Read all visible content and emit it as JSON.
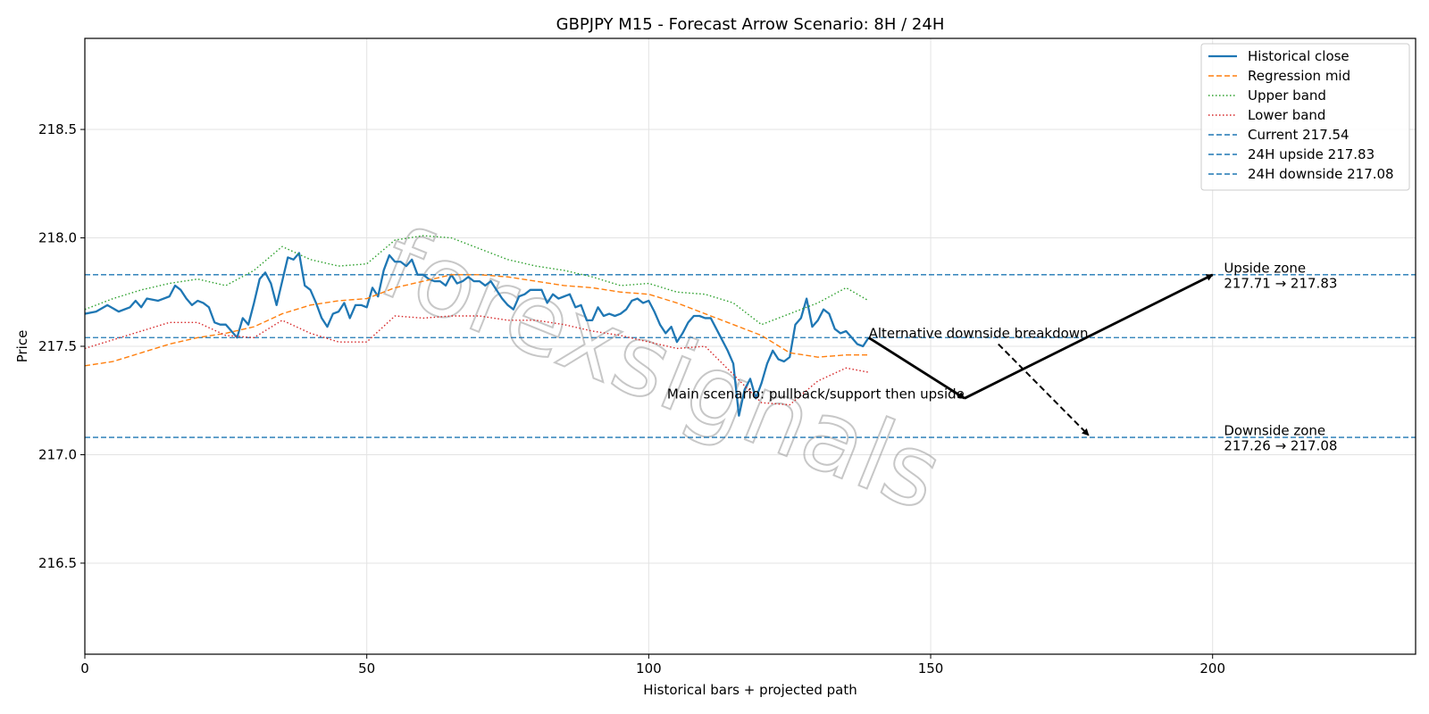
{
  "chart_data": {
    "type": "line",
    "title": "GBPJPY M15 - Forecast Arrow Scenario: 8H / 24H",
    "xlabel": "Historical bars + projected path",
    "ylabel": "Price",
    "xlim": [
      0,
      236
    ],
    "ylim": [
      216.08,
      218.92
    ],
    "xticks": [
      0,
      50,
      100,
      150,
      200
    ],
    "yticks": [
      216.5,
      217.0,
      217.5,
      218.0,
      218.5
    ],
    "grid": true,
    "legend_position": "top-right",
    "series": [
      {
        "name": "Historical close",
        "color": "#1f77b4",
        "style": "solid",
        "points": [
          [
            0,
            217.65
          ],
          [
            2,
            217.66
          ],
          [
            4,
            217.69
          ],
          [
            6,
            217.66
          ],
          [
            8,
            217.68
          ],
          [
            9,
            217.71
          ],
          [
            10,
            217.68
          ],
          [
            11,
            217.72
          ],
          [
            13,
            217.71
          ],
          [
            15,
            217.73
          ],
          [
            16,
            217.78
          ],
          [
            17,
            217.76
          ],
          [
            18,
            217.72
          ],
          [
            19,
            217.69
          ],
          [
            20,
            217.71
          ],
          [
            21,
            217.7
          ],
          [
            22,
            217.68
          ],
          [
            23,
            217.61
          ],
          [
            24,
            217.6
          ],
          [
            25,
            217.6
          ],
          [
            26,
            217.57
          ],
          [
            27,
            217.54
          ],
          [
            28,
            217.63
          ],
          [
            29,
            217.6
          ],
          [
            30,
            217.7
          ],
          [
            31,
            217.81
          ],
          [
            32,
            217.84
          ],
          [
            33,
            217.79
          ],
          [
            34,
            217.69
          ],
          [
            35,
            217.8
          ],
          [
            36,
            217.91
          ],
          [
            37,
            217.9
          ],
          [
            38,
            217.93
          ],
          [
            39,
            217.78
          ],
          [
            40,
            217.76
          ],
          [
            41,
            217.7
          ],
          [
            42,
            217.63
          ],
          [
            43,
            217.59
          ],
          [
            44,
            217.65
          ],
          [
            45,
            217.66
          ],
          [
            46,
            217.7
          ],
          [
            47,
            217.63
          ],
          [
            48,
            217.69
          ],
          [
            49,
            217.69
          ],
          [
            50,
            217.68
          ],
          [
            51,
            217.77
          ],
          [
            52,
            217.73
          ],
          [
            53,
            217.85
          ],
          [
            54,
            217.92
          ],
          [
            55,
            217.89
          ],
          [
            56,
            217.89
          ],
          [
            57,
            217.87
          ],
          [
            58,
            217.9
          ],
          [
            59,
            217.83
          ],
          [
            60,
            217.83
          ],
          [
            61,
            217.81
          ],
          [
            62,
            217.8
          ],
          [
            63,
            217.8
          ],
          [
            64,
            217.78
          ],
          [
            65,
            217.83
          ],
          [
            66,
            217.79
          ],
          [
            67,
            217.8
          ],
          [
            68,
            217.82
          ],
          [
            69,
            217.8
          ],
          [
            70,
            217.8
          ],
          [
            71,
            217.78
          ],
          [
            72,
            217.8
          ],
          [
            73,
            217.76
          ],
          [
            74,
            217.72
          ],
          [
            75,
            217.69
          ],
          [
            76,
            217.67
          ],
          [
            77,
            217.73
          ],
          [
            78,
            217.74
          ],
          [
            79,
            217.76
          ],
          [
            80,
            217.76
          ],
          [
            81,
            217.76
          ],
          [
            82,
            217.7
          ],
          [
            83,
            217.74
          ],
          [
            84,
            217.72
          ],
          [
            85,
            217.73
          ],
          [
            86,
            217.74
          ],
          [
            87,
            217.68
          ],
          [
            88,
            217.69
          ],
          [
            89,
            217.62
          ],
          [
            90,
            217.62
          ],
          [
            91,
            217.68
          ],
          [
            92,
            217.64
          ],
          [
            93,
            217.65
          ],
          [
            94,
            217.64
          ],
          [
            95,
            217.65
          ],
          [
            96,
            217.67
          ],
          [
            97,
            217.71
          ],
          [
            98,
            217.72
          ],
          [
            99,
            217.7
          ],
          [
            100,
            217.71
          ],
          [
            101,
            217.66
          ],
          [
            102,
            217.6
          ],
          [
            103,
            217.56
          ],
          [
            104,
            217.59
          ],
          [
            105,
            217.52
          ],
          [
            106,
            217.56
          ],
          [
            107,
            217.61
          ],
          [
            108,
            217.64
          ],
          [
            109,
            217.64
          ],
          [
            110,
            217.63
          ],
          [
            111,
            217.63
          ],
          [
            112,
            217.58
          ],
          [
            113,
            217.53
          ],
          [
            114,
            217.48
          ],
          [
            115,
            217.42
          ],
          [
            116,
            217.18
          ],
          [
            117,
            217.3
          ],
          [
            118,
            217.35
          ],
          [
            119,
            217.26
          ],
          [
            120,
            217.33
          ],
          [
            121,
            217.42
          ],
          [
            122,
            217.48
          ],
          [
            123,
            217.44
          ],
          [
            124,
            217.43
          ],
          [
            125,
            217.45
          ],
          [
            126,
            217.6
          ],
          [
            127,
            217.63
          ],
          [
            128,
            217.72
          ],
          [
            129,
            217.59
          ],
          [
            130,
            217.62
          ],
          [
            131,
            217.67
          ],
          [
            132,
            217.65
          ],
          [
            133,
            217.58
          ],
          [
            134,
            217.56
          ],
          [
            135,
            217.57
          ],
          [
            136,
            217.54
          ],
          [
            137,
            217.51
          ],
          [
            138,
            217.5
          ],
          [
            139,
            217.54
          ]
        ]
      },
      {
        "name": "Regression mid",
        "color": "#ff7f0e",
        "style": "dashed",
        "points": [
          [
            0,
            217.41
          ],
          [
            5,
            217.43
          ],
          [
            10,
            217.47
          ],
          [
            15,
            217.51
          ],
          [
            20,
            217.54
          ],
          [
            25,
            217.56
          ],
          [
            30,
            217.59
          ],
          [
            35,
            217.65
          ],
          [
            40,
            217.69
          ],
          [
            45,
            217.71
          ],
          [
            50,
            217.72
          ],
          [
            55,
            217.77
          ],
          [
            60,
            217.8
          ],
          [
            65,
            217.83
          ],
          [
            70,
            217.83
          ],
          [
            75,
            217.82
          ],
          [
            80,
            217.8
          ],
          [
            85,
            217.78
          ],
          [
            90,
            217.77
          ],
          [
            95,
            217.75
          ],
          [
            100,
            217.74
          ],
          [
            105,
            217.7
          ],
          [
            110,
            217.65
          ],
          [
            115,
            217.6
          ],
          [
            120,
            217.55
          ],
          [
            125,
            217.47
          ],
          [
            130,
            217.45
          ],
          [
            135,
            217.46
          ],
          [
            139,
            217.46
          ]
        ]
      },
      {
        "name": "Upper band",
        "color": "#2ca02c",
        "style": "dotted",
        "points": [
          [
            0,
            217.67
          ],
          [
            5,
            217.72
          ],
          [
            10,
            217.76
          ],
          [
            15,
            217.79
          ],
          [
            20,
            217.81
          ],
          [
            25,
            217.78
          ],
          [
            30,
            217.85
          ],
          [
            35,
            217.96
          ],
          [
            40,
            217.9
          ],
          [
            45,
            217.87
          ],
          [
            50,
            217.88
          ],
          [
            55,
            217.99
          ],
          [
            60,
            218.01
          ],
          [
            65,
            218.0
          ],
          [
            70,
            217.95
          ],
          [
            75,
            217.9
          ],
          [
            80,
            217.87
          ],
          [
            85,
            217.85
          ],
          [
            90,
            217.82
          ],
          [
            95,
            217.78
          ],
          [
            100,
            217.79
          ],
          [
            105,
            217.75
          ],
          [
            110,
            217.74
          ],
          [
            115,
            217.7
          ],
          [
            120,
            217.6
          ],
          [
            125,
            217.65
          ],
          [
            130,
            217.7
          ],
          [
            135,
            217.77
          ],
          [
            139,
            217.71
          ]
        ]
      },
      {
        "name": "Lower band",
        "color": "#d62728",
        "style": "dotted",
        "points": [
          [
            0,
            217.49
          ],
          [
            5,
            217.53
          ],
          [
            10,
            217.57
          ],
          [
            15,
            217.61
          ],
          [
            20,
            217.61
          ],
          [
            25,
            217.55
          ],
          [
            30,
            217.54
          ],
          [
            35,
            217.62
          ],
          [
            40,
            217.56
          ],
          [
            45,
            217.52
          ],
          [
            50,
            217.52
          ],
          [
            55,
            217.64
          ],
          [
            60,
            217.63
          ],
          [
            65,
            217.64
          ],
          [
            70,
            217.64
          ],
          [
            75,
            217.62
          ],
          [
            80,
            217.62
          ],
          [
            85,
            217.6
          ],
          [
            90,
            217.57
          ],
          [
            95,
            217.55
          ],
          [
            100,
            217.52
          ],
          [
            105,
            217.49
          ],
          [
            110,
            217.5
          ],
          [
            115,
            217.37
          ],
          [
            120,
            217.24
          ],
          [
            125,
            217.23
          ],
          [
            130,
            217.34
          ],
          [
            135,
            217.4
          ],
          [
            139,
            217.38
          ]
        ]
      }
    ],
    "hlines": [
      {
        "name": "Current 217.54",
        "y": 217.54,
        "color": "#1f77b4",
        "style": "dashed"
      },
      {
        "name": "24H upside 217.83",
        "y": 217.83,
        "color": "#1f77b4",
        "style": "dashed"
      },
      {
        "name": "24H downside 217.08",
        "y": 217.08,
        "color": "#1f77b4",
        "style": "dashed"
      }
    ],
    "arrows": [
      {
        "name": "main-leg-1",
        "from": [
          139,
          217.54
        ],
        "to": [
          156,
          217.26
        ],
        "style": "solid"
      },
      {
        "name": "main-leg-2",
        "from": [
          156,
          217.26
        ],
        "to": [
          200,
          217.83
        ],
        "style": "solid"
      },
      {
        "name": "alternative",
        "from": [
          162,
          217.51
        ],
        "to": [
          178,
          217.09
        ],
        "style": "dashed"
      }
    ],
    "annotations": [
      {
        "id": "alt",
        "text": "Alternative downside breakdown",
        "x": 139,
        "y": 217.54,
        "anchor": "start"
      },
      {
        "id": "main",
        "text": "Main scenario: pullback/support then upside",
        "x": 156,
        "y": 217.26,
        "anchor": "end"
      },
      {
        "id": "up_zone_1",
        "text": "Upside zone",
        "x": 202,
        "y": 217.84,
        "anchor": "start"
      },
      {
        "id": "up_zone_2",
        "text": "217.71 → 217.83",
        "x": 202,
        "y": 217.77,
        "anchor": "start"
      },
      {
        "id": "down_zone_1",
        "text": "Downside zone",
        "x": 202,
        "y": 217.09,
        "anchor": "start"
      },
      {
        "id": "down_zone_2",
        "text": "217.26 → 217.08",
        "x": 202,
        "y": 217.02,
        "anchor": "start"
      }
    ],
    "watermark": "forexsignals"
  }
}
